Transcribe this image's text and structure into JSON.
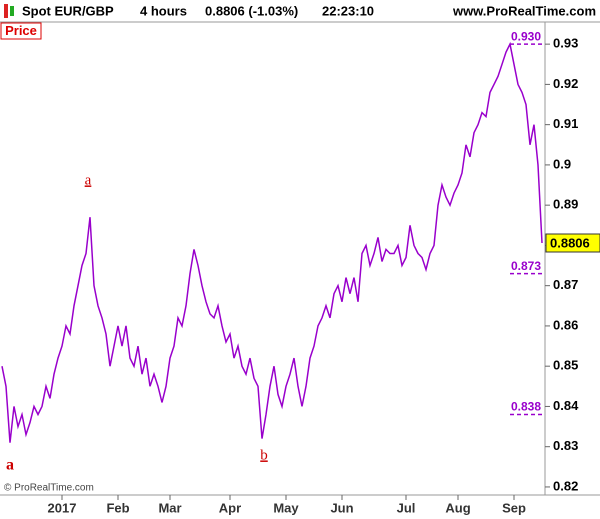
{
  "chart_data": {
    "type": "line",
    "title": "Spot EUR/GBP",
    "interval": "4 hours",
    "last_change": "0.8806 (-1.03%)",
    "time": "22:23:10",
    "site": "www.ProRealTime.com",
    "panel_label": "Price",
    "copyright": "© ProRealTime.com",
    "color": "#9900cc",
    "values": [
      0.85,
      0.845,
      0.831,
      0.84,
      0.835,
      0.838,
      0.833,
      0.836,
      0.84,
      0.838,
      0.84,
      0.845,
      0.842,
      0.848,
      0.852,
      0.855,
      0.86,
      0.858,
      0.865,
      0.87,
      0.875,
      0.878,
      0.887,
      0.87,
      0.865,
      0.862,
      0.858,
      0.85,
      0.855,
      0.86,
      0.855,
      0.86,
      0.852,
      0.85,
      0.855,
      0.848,
      0.852,
      0.845,
      0.848,
      0.845,
      0.841,
      0.845,
      0.852,
      0.855,
      0.862,
      0.86,
      0.865,
      0.873,
      0.879,
      0.875,
      0.87,
      0.866,
      0.863,
      0.862,
      0.865,
      0.86,
      0.856,
      0.858,
      0.852,
      0.855,
      0.85,
      0.848,
      0.852,
      0.847,
      0.845,
      0.832,
      0.838,
      0.845,
      0.85,
      0.843,
      0.84,
      0.845,
      0.848,
      0.852,
      0.845,
      0.84,
      0.845,
      0.852,
      0.855,
      0.86,
      0.862,
      0.865,
      0.862,
      0.868,
      0.87,
      0.866,
      0.872,
      0.868,
      0.872,
      0.866,
      0.878,
      0.88,
      0.875,
      0.878,
      0.882,
      0.876,
      0.879,
      0.878,
      0.878,
      0.88,
      0.875,
      0.877,
      0.885,
      0.88,
      0.878,
      0.877,
      0.874,
      0.878,
      0.88,
      0.89,
      0.895,
      0.892,
      0.89,
      0.893,
      0.895,
      0.898,
      0.905,
      0.902,
      0.908,
      0.91,
      0.913,
      0.912,
      0.918,
      0.92,
      0.922,
      0.925,
      0.928,
      0.93,
      0.925,
      0.92,
      0.918,
      0.915,
      0.905,
      0.91,
      0.9,
      0.8806
    ],
    "xlim": [
      -0.5,
      135.75
    ],
    "xticks": [
      {
        "value": 15,
        "label": "2017"
      },
      {
        "value": 29,
        "label": "Feb"
      },
      {
        "value": 42,
        "label": "Mar"
      },
      {
        "value": 57,
        "label": "Apr"
      },
      {
        "value": 71,
        "label": "May"
      },
      {
        "value": 85,
        "label": "Jun"
      },
      {
        "value": 101,
        "label": "Jul"
      },
      {
        "value": 114,
        "label": "Aug"
      },
      {
        "value": 128,
        "label": "Sep"
      }
    ],
    "ylim": [
      0.818,
      0.9355
    ],
    "yticks": [
      0.82,
      0.83,
      0.84,
      0.85,
      0.86,
      0.87,
      0.88,
      0.89,
      0.9,
      0.91,
      0.92,
      0.93
    ],
    "last_price": 0.8806,
    "levels": [
      {
        "value": 0.93,
        "label": "0.930"
      },
      0.873,
      0.838
    ],
    "annotations": [
      "a",
      "b",
      "a"
    ]
  }
}
